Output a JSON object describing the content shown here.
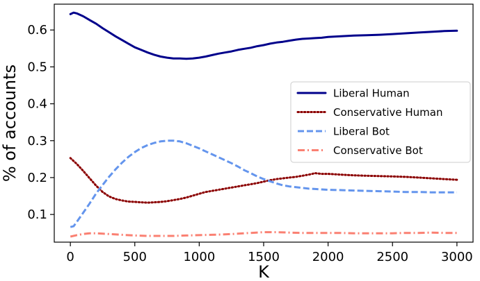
{
  "chart_data": {
    "type": "line",
    "xlabel": "K",
    "ylabel": "% of accounts",
    "xlim": [
      -125,
      3125
    ],
    "ylim": [
      0.025,
      0.67
    ],
    "xticks": [
      0,
      500,
      1000,
      1500,
      2000,
      2500,
      3000
    ],
    "xtick_labels": [
      "0",
      "500",
      "1000",
      "1500",
      "2000",
      "2500",
      "3000"
    ],
    "yticks": [
      0.1,
      0.2,
      0.3,
      0.4,
      0.5,
      0.6
    ],
    "ytick_labels": [
      "0.1",
      "0.2",
      "0.3",
      "0.4",
      "0.5",
      "0.6"
    ],
    "grid": false,
    "legend_position": "center-right",
    "series": [
      {
        "name": "Liberal Human",
        "color": "#00008b",
        "style": "solid",
        "x": [
          0,
          25,
          50,
          100,
          150,
          200,
          250,
          300,
          350,
          400,
          450,
          500,
          550,
          600,
          650,
          700,
          750,
          800,
          850,
          900,
          950,
          1000,
          1050,
          1100,
          1150,
          1200,
          1250,
          1300,
          1350,
          1400,
          1450,
          1500,
          1550,
          1600,
          1650,
          1700,
          1750,
          1800,
          1850,
          1900,
          1950,
          2000,
          2100,
          2200,
          2300,
          2400,
          2500,
          2600,
          2700,
          2800,
          2900,
          3000
        ],
        "y": [
          0.643,
          0.647,
          0.645,
          0.637,
          0.627,
          0.617,
          0.605,
          0.594,
          0.583,
          0.573,
          0.563,
          0.553,
          0.546,
          0.539,
          0.533,
          0.528,
          0.525,
          0.523,
          0.523,
          0.522,
          0.523,
          0.525,
          0.528,
          0.532,
          0.536,
          0.539,
          0.542,
          0.546,
          0.549,
          0.552,
          0.556,
          0.559,
          0.563,
          0.566,
          0.568,
          0.571,
          0.574,
          0.576,
          0.577,
          0.578,
          0.579,
          0.581,
          0.583,
          0.585,
          0.586,
          0.587,
          0.589,
          0.591,
          0.593,
          0.595,
          0.597,
          0.598
        ]
      },
      {
        "name": "Conservative Human",
        "color": "#8b0000",
        "style": "dotted",
        "x": [
          0,
          50,
          100,
          150,
          200,
          250,
          300,
          350,
          400,
          450,
          500,
          550,
          600,
          650,
          700,
          750,
          800,
          850,
          900,
          950,
          1000,
          1050,
          1100,
          1150,
          1200,
          1250,
          1300,
          1350,
          1400,
          1450,
          1500,
          1550,
          1600,
          1650,
          1700,
          1750,
          1800,
          1850,
          1900,
          1950,
          2000,
          2100,
          2200,
          2300,
          2400,
          2500,
          2600,
          2700,
          2800,
          2900,
          3000
        ],
        "y": [
          0.253,
          0.237,
          0.218,
          0.198,
          0.178,
          0.161,
          0.149,
          0.142,
          0.138,
          0.135,
          0.134,
          0.133,
          0.132,
          0.133,
          0.134,
          0.136,
          0.139,
          0.142,
          0.146,
          0.151,
          0.156,
          0.161,
          0.164,
          0.167,
          0.17,
          0.173,
          0.176,
          0.179,
          0.182,
          0.185,
          0.189,
          0.193,
          0.196,
          0.198,
          0.2,
          0.202,
          0.205,
          0.208,
          0.212,
          0.21,
          0.21,
          0.208,
          0.206,
          0.205,
          0.204,
          0.203,
          0.202,
          0.2,
          0.198,
          0.196,
          0.194
        ]
      },
      {
        "name": "Liberal Bot",
        "color": "#6495ed",
        "style": "dashed",
        "x": [
          0,
          25,
          50,
          100,
          150,
          200,
          250,
          300,
          350,
          400,
          450,
          500,
          550,
          600,
          650,
          700,
          750,
          800,
          850,
          900,
          950,
          1000,
          1050,
          1100,
          1150,
          1200,
          1250,
          1300,
          1350,
          1400,
          1450,
          1500,
          1550,
          1600,
          1650,
          1700,
          1750,
          1800,
          1850,
          1900,
          1950,
          2000,
          2100,
          2200,
          2300,
          2400,
          2500,
          2600,
          2700,
          2800,
          2900,
          3000
        ],
        "y": [
          0.066,
          0.068,
          0.08,
          0.105,
          0.13,
          0.157,
          0.18,
          0.202,
          0.222,
          0.24,
          0.256,
          0.269,
          0.28,
          0.288,
          0.294,
          0.298,
          0.3,
          0.3,
          0.298,
          0.293,
          0.286,
          0.279,
          0.271,
          0.263,
          0.255,
          0.247,
          0.239,
          0.23,
          0.22,
          0.212,
          0.203,
          0.196,
          0.19,
          0.184,
          0.179,
          0.176,
          0.174,
          0.172,
          0.17,
          0.169,
          0.168,
          0.167,
          0.166,
          0.165,
          0.164,
          0.163,
          0.162,
          0.161,
          0.161,
          0.16,
          0.16,
          0.16
        ]
      },
      {
        "name": "Conservative Bot",
        "color": "#fa8072",
        "style": "dashdot",
        "x": [
          0,
          50,
          100,
          150,
          200,
          250,
          300,
          400,
          500,
          600,
          700,
          800,
          900,
          1000,
          1100,
          1200,
          1300,
          1400,
          1500,
          1600,
          1700,
          1800,
          1900,
          2000,
          2100,
          2200,
          2300,
          2400,
          2500,
          2600,
          2700,
          2800,
          2900,
          3000
        ],
        "y": [
          0.04,
          0.044,
          0.047,
          0.049,
          0.049,
          0.048,
          0.047,
          0.045,
          0.043,
          0.042,
          0.042,
          0.042,
          0.043,
          0.044,
          0.045,
          0.046,
          0.048,
          0.05,
          0.052,
          0.052,
          0.051,
          0.05,
          0.05,
          0.05,
          0.05,
          0.049,
          0.049,
          0.049,
          0.049,
          0.05,
          0.05,
          0.051,
          0.05,
          0.05
        ]
      }
    ]
  }
}
